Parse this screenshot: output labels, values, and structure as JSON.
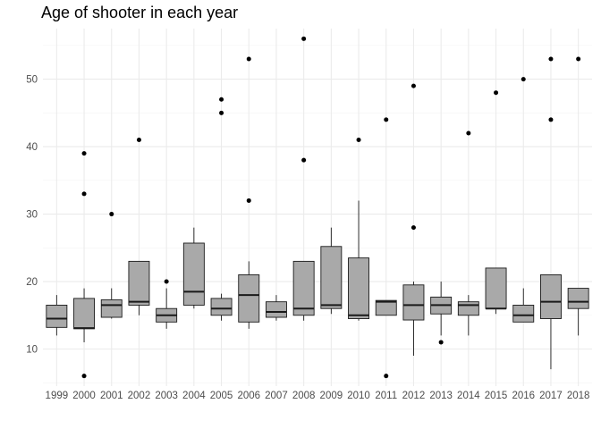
{
  "chart_data": {
    "type": "boxplot",
    "title": "Age of shooter in each year",
    "xlabel": "",
    "ylabel": "",
    "ylim": [
      4.5,
      57.5
    ],
    "yticks": [
      10,
      20,
      30,
      40,
      50
    ],
    "grid": true,
    "colors": {
      "box_fill": "#a9a9a9",
      "outline": "#1a1a1a",
      "grid_major": "#ebebeb",
      "grid_minor": "#f3f3f3",
      "tick_text": "#4d4d4d"
    },
    "categories": [
      "1999",
      "2000",
      "2001",
      "2002",
      "2003",
      "2004",
      "2005",
      "2006",
      "2007",
      "2008",
      "2009",
      "2010",
      "2011",
      "2012",
      "2013",
      "2014",
      "2015",
      "2016",
      "2017",
      "2018"
    ],
    "boxes": [
      {
        "year": "1999",
        "min": 12,
        "q1": 13.2,
        "median": 14.5,
        "q3": 16.5,
        "max": 18,
        "outliers": []
      },
      {
        "year": "2000",
        "min": 11,
        "q1": 13,
        "median": 13.1,
        "q3": 17.5,
        "max": 19,
        "outliers": [
          6,
          33,
          39
        ]
      },
      {
        "year": "2001",
        "min": 14.5,
        "q1": 14.7,
        "median": 16.5,
        "q3": 17.3,
        "max": 19,
        "outliers": [
          30
        ]
      },
      {
        "year": "2002",
        "min": 15,
        "q1": 16.5,
        "median": 17,
        "q3": 23,
        "max": 23,
        "outliers": [
          41
        ]
      },
      {
        "year": "2003",
        "min": 13,
        "q1": 14,
        "median": 15,
        "q3": 16,
        "max": 19,
        "outliers": [
          20
        ]
      },
      {
        "year": "2004",
        "min": 16,
        "q1": 16.5,
        "median": 18.5,
        "q3": 25.7,
        "max": 28,
        "outliers": []
      },
      {
        "year": "2005",
        "min": 14.2,
        "q1": 15,
        "median": 16,
        "q3": 17.5,
        "max": 18.2,
        "outliers": [
          45,
          47
        ]
      },
      {
        "year": "2006",
        "min": 13,
        "q1": 14,
        "median": 18,
        "q3": 21,
        "max": 23,
        "outliers": [
          32,
          53
        ]
      },
      {
        "year": "2007",
        "min": 14.2,
        "q1": 14.7,
        "median": 15.5,
        "q3": 17,
        "max": 18,
        "outliers": []
      },
      {
        "year": "2008",
        "min": 14.2,
        "q1": 15,
        "median": 16,
        "q3": 23,
        "max": 23,
        "outliers": [
          38,
          56
        ]
      },
      {
        "year": "2009",
        "min": 15.2,
        "q1": 16,
        "median": 16.5,
        "q3": 25.2,
        "max": 28,
        "outliers": []
      },
      {
        "year": "2010",
        "min": 14.2,
        "q1": 14.5,
        "median": 15,
        "q3": 23.5,
        "max": 32,
        "outliers": [
          41
        ]
      },
      {
        "year": "2011",
        "min": 15,
        "q1": 15,
        "median": 17,
        "q3": 17.2,
        "max": 17.2,
        "outliers": [
          6,
          44
        ]
      },
      {
        "year": "2012",
        "min": 9,
        "q1": 14.3,
        "median": 16.5,
        "q3": 19.5,
        "max": 20,
        "outliers": [
          28,
          49
        ]
      },
      {
        "year": "2013",
        "min": 12,
        "q1": 15.2,
        "median": 16.5,
        "q3": 17.7,
        "max": 20,
        "outliers": [
          11
        ]
      },
      {
        "year": "2014",
        "min": 12,
        "q1": 15,
        "median": 16.5,
        "q3": 17,
        "max": 18,
        "outliers": [
          42
        ]
      },
      {
        "year": "2015",
        "min": 15.2,
        "q1": 16,
        "median": 16,
        "q3": 22,
        "max": 22,
        "outliers": [
          48
        ]
      },
      {
        "year": "2016",
        "min": 14,
        "q1": 14,
        "median": 15,
        "q3": 16.5,
        "max": 19,
        "outliers": [
          50
        ]
      },
      {
        "year": "2017",
        "min": 7,
        "q1": 14.5,
        "median": 17,
        "q3": 21,
        "max": 21,
        "outliers": [
          44,
          53
        ]
      },
      {
        "year": "2018",
        "min": 12,
        "q1": 16,
        "median": 17,
        "q3": 19,
        "max": 19,
        "outliers": [
          53
        ]
      }
    ]
  }
}
